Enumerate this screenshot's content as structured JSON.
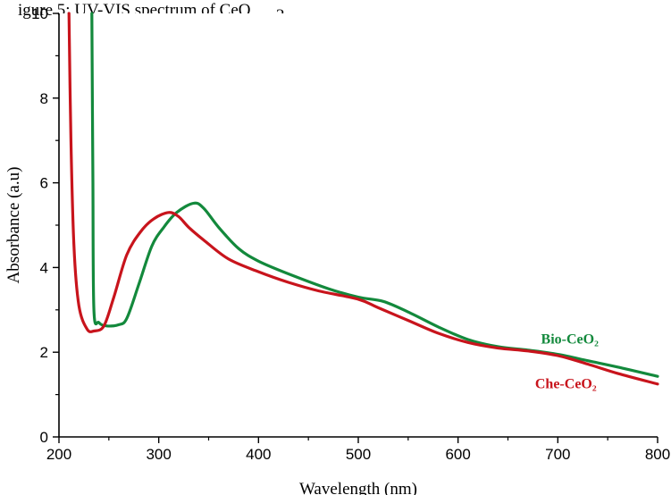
{
  "top_caption": "igure 5: UV-VIS spectrum of CeO",
  "chart_data": {
    "type": "line",
    "title": "",
    "xlabel": "Wavelength (nm)",
    "ylabel": "Absorbance (a.u)",
    "xlim": [
      200,
      800
    ],
    "ylim": [
      0,
      10
    ],
    "xticks": [
      200,
      300,
      400,
      500,
      600,
      700,
      800
    ],
    "yticks": [
      0,
      2,
      4,
      6,
      8,
      10
    ],
    "grid": false,
    "legend": "right, inline labels",
    "series": [
      {
        "name": "Bio-CeO₂",
        "color": "#13893c",
        "points": [
          [
            233,
            10.0
          ],
          [
            234,
            6.0
          ],
          [
            235,
            3.0
          ],
          [
            240,
            2.7
          ],
          [
            248,
            2.62
          ],
          [
            260,
            2.65
          ],
          [
            268,
            2.8
          ],
          [
            280,
            3.6
          ],
          [
            293,
            4.5
          ],
          [
            305,
            4.95
          ],
          [
            318,
            5.3
          ],
          [
            335,
            5.52
          ],
          [
            345,
            5.4
          ],
          [
            360,
            4.95
          ],
          [
            380,
            4.45
          ],
          [
            400,
            4.15
          ],
          [
            430,
            3.85
          ],
          [
            470,
            3.5
          ],
          [
            500,
            3.3
          ],
          [
            525,
            3.2
          ],
          [
            550,
            2.95
          ],
          [
            580,
            2.6
          ],
          [
            610,
            2.3
          ],
          [
            640,
            2.13
          ],
          [
            670,
            2.05
          ],
          [
            700,
            1.95
          ],
          [
            730,
            1.8
          ],
          [
            760,
            1.65
          ],
          [
            800,
            1.43
          ]
        ]
      },
      {
        "name": "Che-CeO₂",
        "color": "#c8141c",
        "points": [
          [
            210,
            10.0
          ],
          [
            212,
            7.0
          ],
          [
            215,
            4.5
          ],
          [
            220,
            3.1
          ],
          [
            228,
            2.55
          ],
          [
            235,
            2.5
          ],
          [
            245,
            2.62
          ],
          [
            255,
            3.3
          ],
          [
            268,
            4.3
          ],
          [
            282,
            4.85
          ],
          [
            295,
            5.15
          ],
          [
            310,
            5.3
          ],
          [
            320,
            5.2
          ],
          [
            330,
            4.95
          ],
          [
            345,
            4.65
          ],
          [
            370,
            4.2
          ],
          [
            400,
            3.9
          ],
          [
            430,
            3.65
          ],
          [
            460,
            3.45
          ],
          [
            500,
            3.25
          ],
          [
            520,
            3.05
          ],
          [
            550,
            2.75
          ],
          [
            580,
            2.45
          ],
          [
            610,
            2.23
          ],
          [
            640,
            2.1
          ],
          [
            670,
            2.03
          ],
          [
            700,
            1.92
          ],
          [
            730,
            1.72
          ],
          [
            760,
            1.5
          ],
          [
            800,
            1.25
          ]
        ]
      }
    ],
    "series_labels": [
      {
        "text": "Bio-CeO₂",
        "color": "#13893c",
        "x": 712,
        "y": 2.2
      },
      {
        "text": "Che-CeO₂",
        "color": "#c8141c",
        "x": 708,
        "y": 1.15
      }
    ]
  }
}
